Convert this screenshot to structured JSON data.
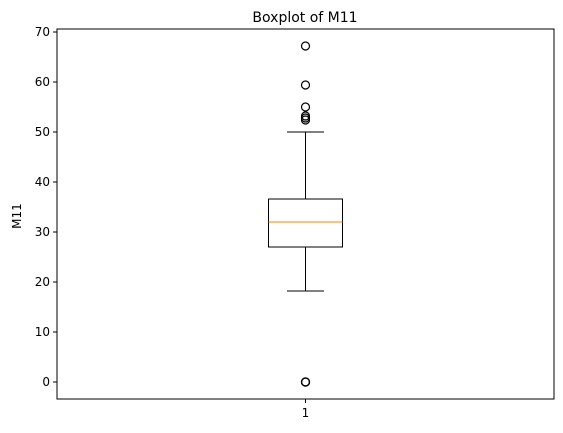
{
  "chart_data": {
    "type": "boxplot",
    "title": "Boxplot of M11",
    "xlabel": "",
    "ylabel": "M11",
    "categories": [
      "1"
    ],
    "ylim": [
      -3.4,
      70.6
    ],
    "yticks": [
      0,
      10,
      20,
      30,
      40,
      50,
      60,
      70
    ],
    "grid": false,
    "boxes": [
      {
        "category": "1",
        "whisker_low": 18.2,
        "q1": 27.0,
        "median": 32.0,
        "q3": 36.6,
        "whisker_high": 50.0,
        "outliers": [
          67.2,
          59.4,
          55.0,
          53.2,
          52.8,
          52.4,
          0.0,
          0.0,
          0.0
        ]
      }
    ],
    "colors": {
      "box": "#000000",
      "median": "#ff7f0e",
      "outlier": "#000000"
    }
  }
}
